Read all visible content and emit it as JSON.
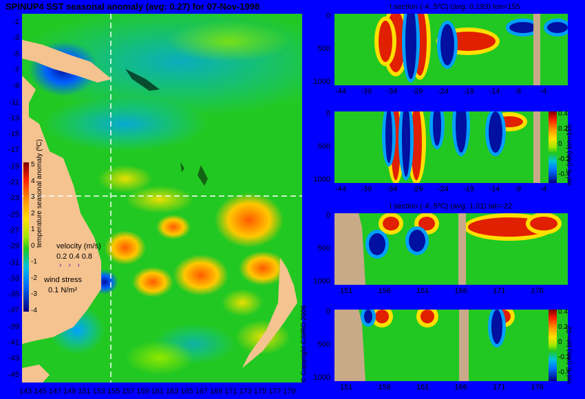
{
  "map": {
    "title": "SPINUP4 SST seasonal anomaly (avg: 0.27) for 07-Nov-1998",
    "yticks": [
      "-1",
      "-3",
      "-5",
      "-7",
      "-9",
      "-11",
      "-13",
      "-15",
      "-17",
      "-19",
      "-21",
      "-23",
      "-25",
      "-27",
      "-29",
      "-31",
      "-33",
      "-35",
      "-37",
      "-39",
      "-41",
      "-43",
      "-45"
    ],
    "xticks": [
      "143",
      "145",
      "147",
      "149",
      "151",
      "153",
      "155",
      "157",
      "159",
      "161",
      "163",
      "165",
      "167",
      "169",
      "171",
      "173",
      "175",
      "177",
      "179"
    ],
    "colorbar": {
      "label": "temperature seasonal anomaly (ºC)",
      "ticks": [
        "5",
        "4",
        "3",
        "2",
        "1",
        "0",
        "-1",
        "-2",
        "-3",
        "-4"
      ]
    },
    "velocity_legend": {
      "label": "velocity (m/s)",
      "values": "0.2 0.4 0.8"
    },
    "wind_legend": {
      "label": "wind stress",
      "value": "0.1 N/m²"
    },
    "copyright": "© Copyright CSIRO 2006"
  },
  "panels": [
    {
      "title": "t section (-4..5ºC) (avg: 0.193) lon=155",
      "ylabel": "",
      "yticks": [
        "0",
        "500",
        "1000"
      ],
      "xticks": [
        "-44",
        "-39",
        "-34",
        "-29",
        "-24",
        "-19",
        "-14",
        "-9",
        "-4"
      ]
    },
    {
      "title": "",
      "ylabel": "vel. E (m/s) lon=155",
      "yticks": [
        "0",
        "500",
        "1000"
      ],
      "xticks": [
        "-44",
        "-39",
        "-34",
        "-29",
        "-24",
        "-19",
        "-14",
        "-9",
        "-4"
      ],
      "cbticks": [
        "0.4",
        "0.2",
        "0",
        "-0.2",
        "-0.4"
      ]
    },
    {
      "title": "t section (-4..5ºC) (avg: 1.01) lat=-22",
      "ylabel": "",
      "yticks": [
        "0",
        "500",
        "1000"
      ],
      "xticks": [
        "151",
        "156",
        "161",
        "166",
        "171",
        "176"
      ]
    },
    {
      "title": "",
      "ylabel": "vel. E (m/s) lat=-22",
      "yticks": [
        "0",
        "500",
        "1000"
      ],
      "xticks": [
        "151",
        "156",
        "161",
        "166",
        "171",
        "176"
      ],
      "cbticks": [
        "0.4",
        "0.2",
        "0",
        "-0.2",
        "-0.4"
      ]
    }
  ],
  "chart_data": [
    {
      "type": "heatmap",
      "title": "SPINUP4 SST seasonal anomaly (avg: 0.27) for 07-Nov-1998",
      "xlabel": "",
      "ylabel": "",
      "xlim": [
        143,
        180
      ],
      "ylim": [
        -45,
        0
      ],
      "colorbar_range": [
        -4,
        5
      ]
    },
    {
      "type": "heatmap",
      "title": "t section (-4..5ºC) (avg: 0.193) lon=155",
      "xlim": [
        -46,
        0
      ],
      "ylim": [
        1050,
        0
      ],
      "colorbar_range": [
        -4,
        5
      ]
    },
    {
      "type": "heatmap",
      "title": "",
      "colorbar_label": "vel. E (m/s) lon=155",
      "xlim": [
        -46,
        0
      ],
      "ylim": [
        1050,
        0
      ],
      "colorbar_range": [
        -0.4,
        0.4
      ]
    },
    {
      "type": "heatmap",
      "title": "t section (-4..5ºC) (avg: 1.01) lat=-22",
      "xlim": [
        150,
        180
      ],
      "ylim": [
        1050,
        0
      ],
      "colorbar_range": [
        -4,
        5
      ]
    },
    {
      "type": "heatmap",
      "title": "",
      "colorbar_label": "vel. E (m/s) lat=-22",
      "xlim": [
        150,
        180
      ],
      "ylim": [
        1050,
        0
      ],
      "colorbar_range": [
        -0.4,
        0.4
      ]
    }
  ]
}
